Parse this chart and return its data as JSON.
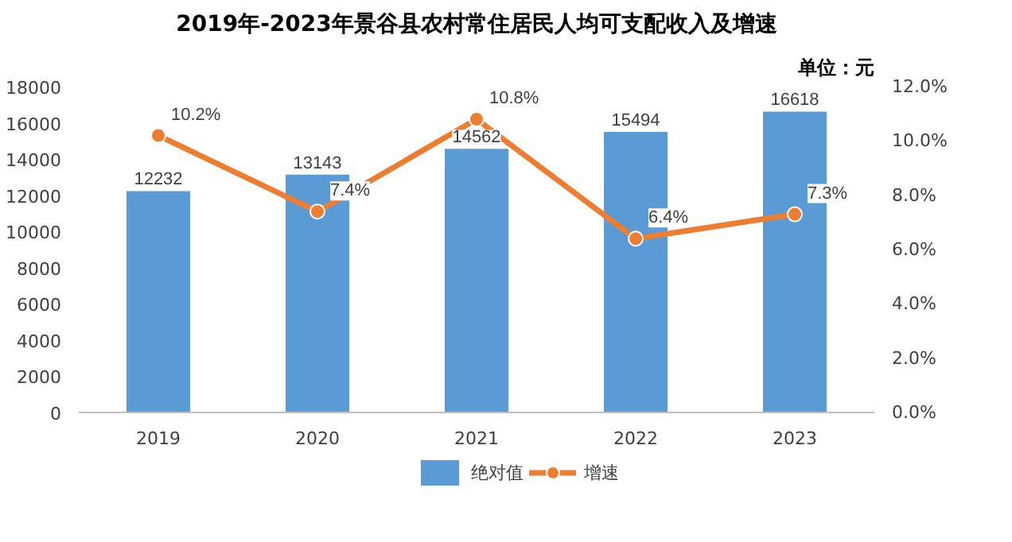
{
  "chart_data": {
    "type": "bar",
    "title": "2019年-2023年景谷县农村常住居民人均可支配收入及增速",
    "annotations": [
      "单位：元"
    ],
    "categories": [
      "2019",
      "2020",
      "2021",
      "2022",
      "2023"
    ],
    "series": [
      {
        "name": "绝对值",
        "color": "#5b9bd5",
        "values": [
          12232,
          13143,
          14562,
          15494,
          16618
        ]
      },
      {
        "name": "增速",
        "color": "#ed7d31",
        "type": "line",
        "axis": "y2",
        "marker": "circle",
        "values": [
          10.2,
          7.4,
          10.8,
          6.4,
          7.3
        ],
        "value_labels": [
          "10.2%",
          "7.4%",
          "10.8%",
          "6.4%",
          "7.3%"
        ]
      }
    ],
    "data_labels": true,
    "legend": "bottom",
    "ylim": [
      0,
      18000
    ],
    "yticks": [
      0,
      2000,
      4000,
      6000,
      8000,
      10000,
      12000,
      14000,
      16000,
      18000
    ],
    "y2lim": [
      0,
      12
    ],
    "y2ticks": [
      {
        "value": 0,
        "label": "0.0%"
      },
      {
        "value": 2,
        "label": "2.0%"
      },
      {
        "value": 4,
        "label": "4.0%"
      },
      {
        "value": 6,
        "label": "6.0%"
      },
      {
        "value": 8,
        "label": "8.0%"
      },
      {
        "value": 10,
        "label": "10.0%"
      },
      {
        "value": 12,
        "label": "12.0%"
      }
    ]
  }
}
